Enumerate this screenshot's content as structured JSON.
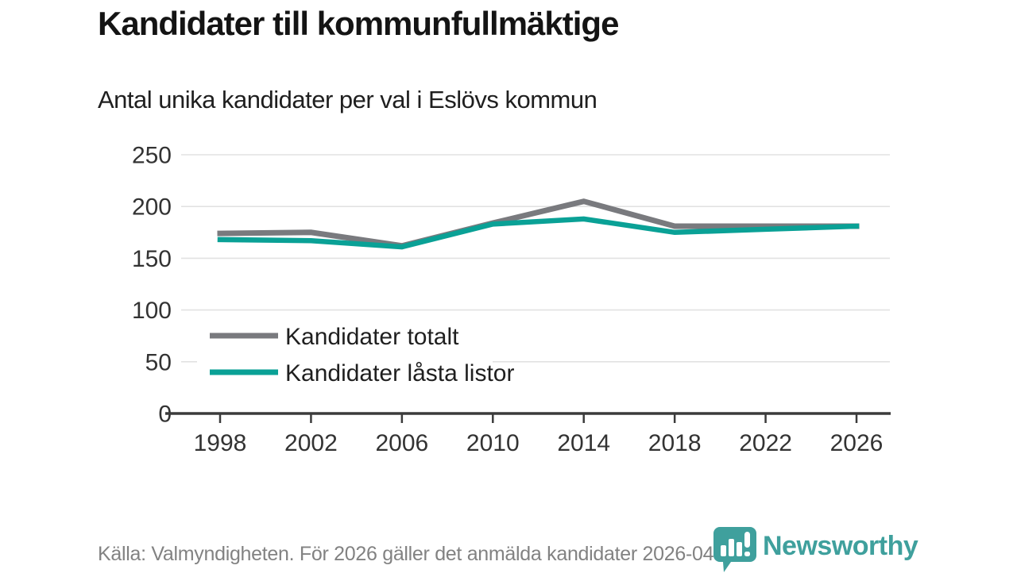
{
  "header": {
    "title": "Kandidater till kommunfullmäktige",
    "subtitle": "Antal unika kandidater per val i Eslövs kommun"
  },
  "chart_data": {
    "type": "line",
    "title": "Kandidater till kommunfullmäktige",
    "subtitle": "Antal unika kandidater per val i Eslövs kommun",
    "x": [
      "1998",
      "2002",
      "2006",
      "2010",
      "2014",
      "2018",
      "2022",
      "2026"
    ],
    "series": [
      {
        "name": "Kandidater totalt",
        "color": "#797a7e",
        "values": [
          174,
          175,
          162,
          184,
          205,
          181,
          181,
          181
        ]
      },
      {
        "name": "Kandidater låsta listor",
        "color": "#0aa196",
        "values": [
          168,
          167,
          161,
          183,
          188,
          175,
          178,
          181
        ]
      }
    ],
    "ylim": [
      0,
      250
    ],
    "yticks": [
      0,
      50,
      100,
      150,
      200,
      250
    ],
    "grid": true,
    "legend_position": "inside-left",
    "colors": {
      "grid": "#e2e2e2",
      "axis": "#3b3b3b",
      "tick_label": "#333333",
      "legend_text": "#1f1f1f"
    }
  },
  "footer": {
    "source": "Källa: Valmyndigheten. För 2026 gäller det anmälda kandidater 2026-04-10.",
    "brand": "Newsworthy",
    "brand_color": "#3fa09d"
  }
}
